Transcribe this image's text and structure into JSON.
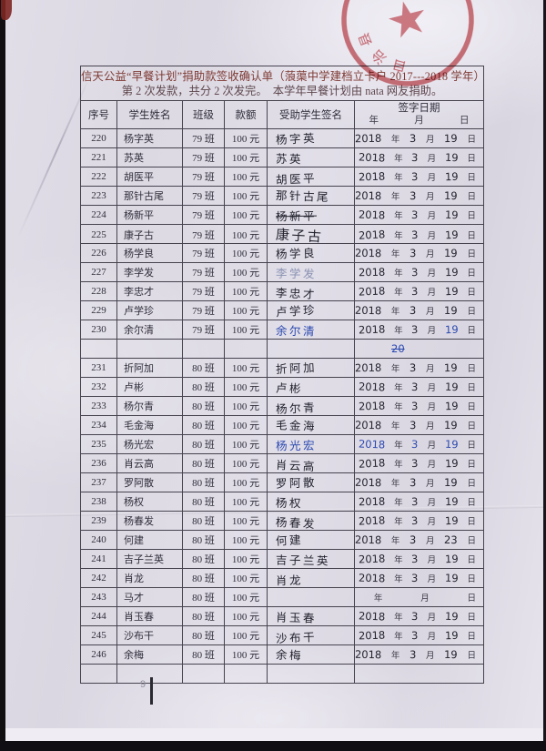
{
  "document": {
    "title_line1": "信天公益“早餐计划”捐助款签收确认单（蒗蕖中学建档立卡户 2017---2018 学年）",
    "title_line2": "第 2 次发款，共分 2 次发完。　本学年早餐计划由 nata 网友捐助。",
    "page_number": "9"
  },
  "stamp": {
    "shape": "circular-red-seal-with-star",
    "visible_text": "自治县",
    "color": "#c5474f"
  },
  "table": {
    "headers": {
      "no": "序号",
      "name": "学生姓名",
      "class": "班级",
      "amount": "款额",
      "signature": "受助学生签名",
      "date": "签字日期"
    },
    "date_units": {
      "year": "年",
      "month": "月",
      "day": "日"
    },
    "rows": [
      {
        "no": "220",
        "name": "杨字英",
        "class": "79 班",
        "amount": "100 元",
        "signature": "杨字英",
        "date": {
          "y": "2018",
          "m": "3",
          "d": "19"
        }
      },
      {
        "no": "221",
        "name": "苏英",
        "class": "79 班",
        "amount": "100 元",
        "signature": "苏英",
        "date": {
          "y": "2018",
          "m": "3",
          "d": "19"
        }
      },
      {
        "no": "222",
        "name": "胡医平",
        "class": "79 班",
        "amount": "100 元",
        "signature": "胡医平",
        "date": {
          "y": "2018",
          "m": "3",
          "d": "19"
        }
      },
      {
        "no": "223",
        "name": "那针古尾",
        "class": "79 班",
        "amount": "100 元",
        "signature": "那针古尾",
        "date": {
          "y": "2018",
          "m": "3",
          "d": "19"
        }
      },
      {
        "no": "224",
        "name": "杨新平",
        "class": "79 班",
        "amount": "100 元",
        "signature": "杨新平",
        "sig_strike": true,
        "date": {
          "y": "2018",
          "m": "3",
          "d": "19"
        }
      },
      {
        "no": "225",
        "name": "康子古",
        "class": "79 班",
        "amount": "100 元",
        "signature": "康子古",
        "sig_big": true,
        "date": {
          "y": "2018",
          "m": "3",
          "d": "19"
        }
      },
      {
        "no": "226",
        "name": "杨学良",
        "class": "79 班",
        "amount": "100 元",
        "signature": "杨学良",
        "date": {
          "y": "2018",
          "m": "3",
          "d": "19"
        }
      },
      {
        "no": "227",
        "name": "李学发",
        "class": "79 班",
        "amount": "100 元",
        "signature": "李学发",
        "ink": "faded",
        "date": {
          "y": "2018",
          "m": "3",
          "d": "19"
        }
      },
      {
        "no": "228",
        "name": "李忠才",
        "class": "79 班",
        "amount": "100 元",
        "signature": "李忠才",
        "date": {
          "y": "2018",
          "m": "3",
          "d": "19"
        }
      },
      {
        "no": "229",
        "name": "卢学珍",
        "class": "79 班",
        "amount": "100 元",
        "signature": "卢学珍",
        "date": {
          "y": "2018",
          "m": "3",
          "d": "19"
        }
      },
      {
        "no": "230",
        "name": "余尔清",
        "class": "79 班",
        "amount": "100 元",
        "signature": "余尔清",
        "ink": "blue",
        "date": {
          "y": "2018",
          "m": "3",
          "d": "19"
        },
        "d_ink": "blue"
      },
      {
        "blank": true,
        "date_note": "20"
      },
      {
        "no": "231",
        "name": "折阿加",
        "class": "80 班",
        "amount": "100 元",
        "signature": "折阿加",
        "date": {
          "y": "2018",
          "m": "3",
          "d": "19"
        }
      },
      {
        "no": "232",
        "name": "卢彬",
        "class": "80 班",
        "amount": "100 元",
        "signature": "卢彬",
        "date": {
          "y": "2018",
          "m": "3",
          "d": "19"
        }
      },
      {
        "no": "233",
        "name": "杨尔青",
        "class": "80 班",
        "amount": "100 元",
        "signature": "杨尔青",
        "date": {
          "y": "2018",
          "m": "3",
          "d": "19"
        }
      },
      {
        "no": "234",
        "name": "毛金海",
        "class": "80 班",
        "amount": "100 元",
        "signature": "毛金海",
        "date": {
          "y": "2018",
          "m": "3",
          "d": "19"
        }
      },
      {
        "no": "235",
        "name": "杨光宏",
        "class": "80 班",
        "amount": "100 元",
        "signature": "杨光宏",
        "ink": "blue",
        "date": {
          "y": "2018",
          "m": "3",
          "d": "19"
        },
        "date_ink": "blue"
      },
      {
        "no": "236",
        "name": "肖云高",
        "class": "80 班",
        "amount": "100 元",
        "signature": "肖云高",
        "date": {
          "y": "2018",
          "m": "3",
          "d": "19"
        }
      },
      {
        "no": "237",
        "name": "罗阿散",
        "class": "80 班",
        "amount": "100 元",
        "signature": "罗阿散",
        "date": {
          "y": "2018",
          "m": "3",
          "d": "19"
        }
      },
      {
        "no": "238",
        "name": "杨权",
        "class": "80 班",
        "amount": "100 元",
        "signature": "杨权",
        "date": {
          "y": "2018",
          "m": "3",
          "d": "19"
        }
      },
      {
        "no": "239",
        "name": "杨春发",
        "class": "80 班",
        "amount": "100 元",
        "signature": "杨春发",
        "date": {
          "y": "2018",
          "m": "3",
          "d": "19"
        }
      },
      {
        "no": "240",
        "name": "何建",
        "class": "80 班",
        "amount": "100 元",
        "signature": "何建",
        "date": {
          "y": "2018",
          "m": "3",
          "d": "23"
        }
      },
      {
        "no": "241",
        "name": "吉子兰英",
        "class": "80 班",
        "amount": "100 元",
        "signature": "吉子兰英",
        "date": {
          "y": "2018",
          "m": "3",
          "d": "19"
        }
      },
      {
        "no": "242",
        "name": "肖龙",
        "class": "80 班",
        "amount": "100 元",
        "signature": "肖龙",
        "date": {
          "y": "2018",
          "m": "3",
          "d": "19"
        }
      },
      {
        "no": "243",
        "name": "马才",
        "class": "80 班",
        "amount": "100 元",
        "signature": "",
        "date": {
          "y": "",
          "m": "",
          "d": ""
        }
      },
      {
        "no": "244",
        "name": "肖玉春",
        "class": "80 班",
        "amount": "100 元",
        "signature": "肖玉春",
        "date": {
          "y": "2018",
          "m": "3",
          "d": "19"
        }
      },
      {
        "no": "245",
        "name": "沙布干",
        "class": "80 班",
        "amount": "100 元",
        "signature": "沙布干",
        "date": {
          "y": "2018",
          "m": "3",
          "d": "19"
        }
      },
      {
        "no": "246",
        "name": "余梅",
        "class": "80 班",
        "amount": "100 元",
        "signature": "余梅",
        "date": {
          "y": "2018",
          "m": "3",
          "d": "19"
        }
      },
      {
        "blank": true
      }
    ]
  },
  "colors": {
    "paper": "#dfdbe5",
    "table_line": "#46434f",
    "print_text": "#2f2e3a",
    "title_red": "#7e3a33",
    "ink_black": "#23242e",
    "ink_blue": "#2b49b0",
    "ink_faded": "#8a92b2",
    "seal_red": "#c5474f"
  }
}
